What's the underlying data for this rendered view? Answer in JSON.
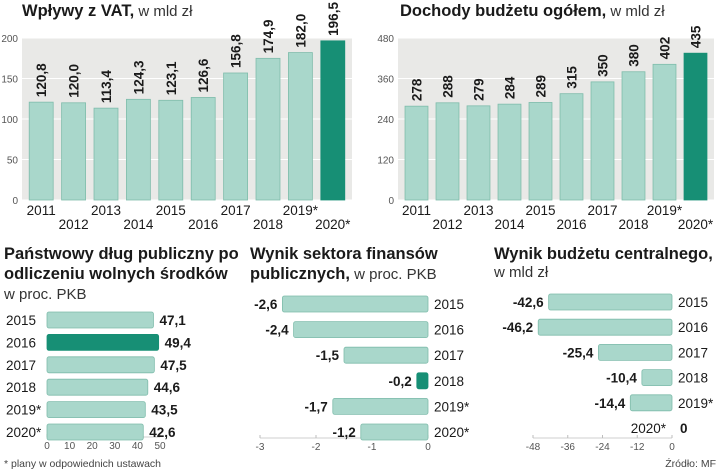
{
  "colors": {
    "bar": "#a9d7cb",
    "bar_stroke": "#7fbcab",
    "highlight": "#178f75",
    "panel_bg": "#e9e9e7",
    "grid": "#ffffff",
    "text": "#1a1a1a"
  },
  "footnote": "* plany w odpowiednich ustawach",
  "source": "Źródło: MF",
  "chart_data": [
    {
      "id": "vat",
      "type": "bar",
      "title": "Wpływy z VAT,",
      "subtitle": "w mld zł",
      "categories": [
        "2011",
        "2012",
        "2013",
        "2014",
        "2015",
        "2016",
        "2017",
        "2018",
        "2019*",
        "2020*"
      ],
      "values": [
        120.8,
        120.0,
        113.4,
        124.3,
        123.1,
        126.6,
        156.8,
        174.9,
        182.0,
        196.5
      ],
      "value_labels": [
        "120,8",
        "120,0",
        "113,4",
        "124,3",
        "123,1",
        "126,6",
        "156,8",
        "174,9",
        "182,0",
        "196,5"
      ],
      "yticks": [
        "0",
        "50",
        "100",
        "150",
        "200"
      ],
      "ylim": [
        0,
        200
      ],
      "highlight_index": 9
    },
    {
      "id": "dochody",
      "type": "bar",
      "title": "Dochody budżetu ogółem,",
      "subtitle": "w mld zł",
      "categories": [
        "2011",
        "2012",
        "2013",
        "2014",
        "2015",
        "2016",
        "2017",
        "2018",
        "2019*",
        "2020*"
      ],
      "values": [
        278,
        288,
        279,
        284,
        289,
        315,
        350,
        380,
        402,
        435
      ],
      "value_labels": [
        "278",
        "288",
        "279",
        "284",
        "289",
        "315",
        "350",
        "380",
        "402",
        "435"
      ],
      "yticks": [
        "0",
        "120",
        "240",
        "360",
        "480"
      ],
      "ylim": [
        0,
        480
      ],
      "highlight_index": 9
    },
    {
      "id": "dlug",
      "type": "bar",
      "orientation": "horizontal",
      "title_lines": [
        "Państwowy dług publiczny po",
        "odliczeniu wolnych środków"
      ],
      "subtitle": "w proc. PKB",
      "categories": [
        "2015",
        "2016",
        "2017",
        "2018",
        "2019*",
        "2020*"
      ],
      "values": [
        47.1,
        49.4,
        47.5,
        44.6,
        43.5,
        42.6
      ],
      "value_labels": [
        "47,1",
        "49,4",
        "47,5",
        "44,6",
        "43,5",
        "42,6"
      ],
      "xticks": [
        "0",
        "10",
        "20",
        "30",
        "40",
        "50"
      ],
      "xlim": [
        0,
        50
      ],
      "highlight_index": 1
    },
    {
      "id": "sektor",
      "type": "bar",
      "orientation": "horizontal",
      "title_lines": [
        "Wynik sektora finansów"
      ],
      "title_line2_bold": "publicznych,",
      "subtitle": "w proc. PKB",
      "categories": [
        "2015",
        "2016",
        "2017",
        "2018",
        "2019*",
        "2020*"
      ],
      "values": [
        -2.6,
        -2.4,
        -1.5,
        -0.2,
        -1.7,
        -1.2
      ],
      "value_labels": [
        "-2,6",
        "-2,4",
        "-1,5",
        "-0,2",
        "-1,7",
        "-1,2"
      ],
      "xticks": [
        "-3",
        "-2",
        "-1",
        "0"
      ],
      "xlim": [
        -3,
        0
      ],
      "highlight_index": 3
    },
    {
      "id": "budzet",
      "type": "bar",
      "orientation": "horizontal",
      "title_lines": [
        "Wynik budżetu centralnego,"
      ],
      "subtitle": "w mld zł",
      "categories": [
        "2015",
        "2016",
        "2017",
        "2018",
        "2019*",
        "2020*"
      ],
      "values": [
        -42.6,
        -46.2,
        -25.4,
        -10.4,
        -14.4,
        0
      ],
      "value_labels": [
        "-42,6",
        "-46,2",
        "-25,4",
        "-10,4",
        "-14,4",
        "0"
      ],
      "xticks": [
        "-48",
        "-36",
        "-24",
        "-12",
        "0"
      ],
      "xlim": [
        -48,
        0
      ],
      "highlight_index": -1
    }
  ]
}
